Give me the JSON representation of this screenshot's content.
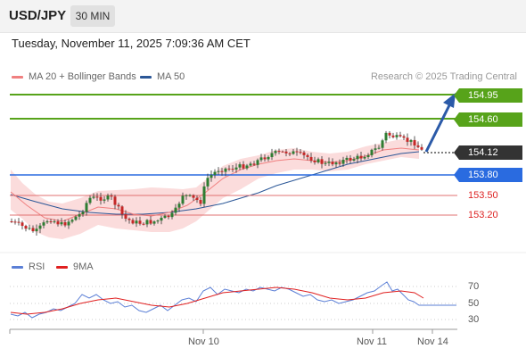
{
  "header": {
    "symbol": "USD/JPY",
    "timeframe": "30 MIN"
  },
  "timestamp": "Tuesday, November 11, 2025 7:09:36 AM CET",
  "legend": {
    "ma20_label": "MA 20 + Bollinger Bands",
    "ma20_color": "#f08080",
    "ma50_label": "MA 50",
    "ma50_color": "#2b5797",
    "credit": "Research © 2025 Trading Central"
  },
  "levels": [
    {
      "value": "154.95",
      "color": "#57a31a"
    },
    {
      "value": "154.60",
      "color": "#57a31a"
    },
    {
      "value": "154.12",
      "color": "#333333"
    },
    {
      "value": "153.80",
      "color": "#2a6be0"
    },
    {
      "value": "153.50",
      "color": "#d22222"
    },
    {
      "value": "153.20",
      "color": "#d22222"
    }
  ],
  "rsi_legend": {
    "rsi_label": "RSI",
    "rsi_color": "#5b7fd6",
    "ma_label": "9MA",
    "ma_color": "#e02020"
  },
  "rsi_axis": [
    "70",
    "50",
    "30"
  ],
  "x_axis": [
    "Nov 10",
    "Nov 11",
    "Nov 14"
  ]
}
